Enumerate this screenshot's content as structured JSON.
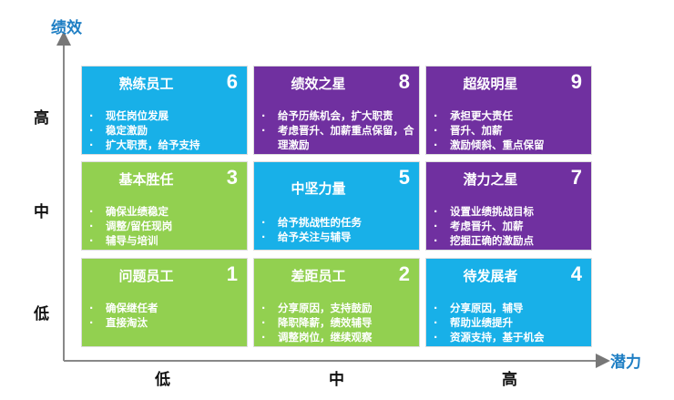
{
  "axes": {
    "y_title": "绩效",
    "x_title": "潜力",
    "y_levels": [
      "高",
      "中",
      "低"
    ],
    "x_levels": [
      "低",
      "中",
      "高"
    ],
    "color": "#1f7fc4"
  },
  "colors": {
    "blue": "#18b0e8",
    "purple": "#7030a0",
    "green": "#92d050"
  },
  "grid": [
    {
      "title": "熟练员工",
      "number": "6",
      "color": "blue",
      "items": [
        "现任岗位发展",
        "稳定激励",
        "扩大职责，给予支持"
      ]
    },
    {
      "title": "绩效之星",
      "number": "8",
      "color": "purple",
      "items": [
        "给予历练机会，扩大职责",
        "考虑晋升、加薪重点保留，合理激励"
      ]
    },
    {
      "title": "超级明星",
      "number": "9",
      "color": "purple",
      "items": [
        "承担更大责任",
        "晋升、加薪",
        "激励倾斜、重点保留"
      ]
    },
    {
      "title": "基本胜任",
      "number": "3",
      "color": "green",
      "items": [
        "确保业绩稳定",
        "调整/留任现岗",
        "辅导与培训"
      ]
    },
    {
      "title": "中坚力量",
      "number": "5",
      "color": "blue",
      "items": [
        "给予挑战性的任务",
        "给予关注与辅导"
      ]
    },
    {
      "title": "潜力之星",
      "number": "7",
      "color": "purple",
      "items": [
        "设置业绩挑战目标",
        "考虑晋升、加薪",
        "挖掘正确的激励点"
      ]
    },
    {
      "title": "问题员工",
      "number": "1",
      "color": "green",
      "items": [
        "确保继任者",
        "直接淘汰"
      ]
    },
    {
      "title": "差距员工",
      "number": "2",
      "color": "green",
      "items": [
        "分享原因，支持鼓励",
        "降职降薪，绩效辅导",
        "调整岗位，继续观察"
      ]
    },
    {
      "title": "待发展者",
      "number": "4",
      "color": "blue",
      "items": [
        "分享原因，辅导",
        "帮助业绩提升",
        "资源支持，基于机会"
      ]
    }
  ]
}
